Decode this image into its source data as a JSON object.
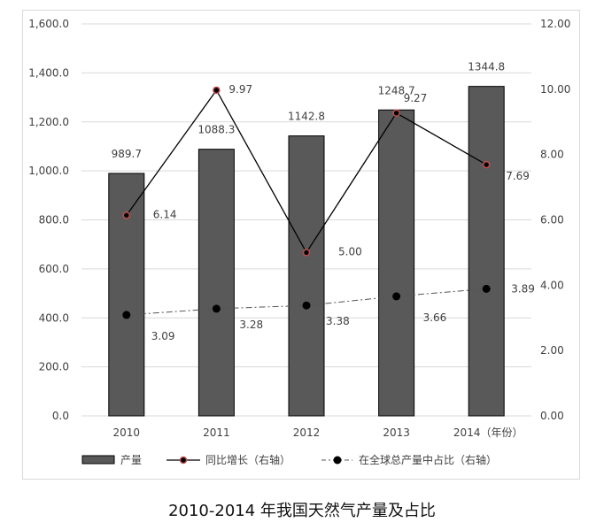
{
  "chart_data": {
    "type": "bar",
    "title": "2010-2014 年我国天然气产量及占比",
    "xlabel": "（年份）",
    "ylabel": "",
    "categories": [
      "2010",
      "2011",
      "2012",
      "2013",
      "2014"
    ],
    "category_labels": [
      "2010",
      "2011",
      "2012",
      "2013",
      "2014（年份）"
    ],
    "ylim": [
      0,
      1600
    ],
    "y2lim": [
      0,
      12
    ],
    "left_ticks": [
      "0.0",
      "200.0",
      "400.0",
      "600.0",
      "800.0",
      "1,000.0",
      "1,200.0",
      "1,400.0",
      "1,600.0"
    ],
    "right_ticks": [
      "0.00",
      "2.00",
      "4.00",
      "6.00",
      "8.00",
      "10.00",
      "12.00"
    ],
    "grid": true,
    "legend_position": "bottom",
    "series": [
      {
        "name": "产量",
        "type": "bar",
        "axis": "left",
        "values": [
          989.7,
          1088.3,
          1142.8,
          1248.7,
          1344.8
        ],
        "labels": [
          "989.7",
          "1088.3",
          "1142.8",
          "1248.7",
          "1344.8"
        ],
        "color": "#595959"
      },
      {
        "name": "同比增长（右轴）",
        "type": "line",
        "axis": "right",
        "values": [
          6.14,
          9.97,
          5.0,
          9.27,
          7.69
        ],
        "labels": [
          "6.14",
          "9.97",
          "5.00",
          "9.27",
          "7.69"
        ],
        "color": "#000000",
        "marker_edge": "#c0504d"
      },
      {
        "name": "在全球总产量中占比（右轴）",
        "type": "line",
        "style": "dash-dot",
        "axis": "right",
        "values": [
          3.09,
          3.28,
          3.38,
          3.66,
          3.89
        ],
        "labels": [
          "3.09",
          "3.28",
          "3.38",
          "3.66",
          "3.89"
        ],
        "color": "#000000"
      }
    ]
  }
}
